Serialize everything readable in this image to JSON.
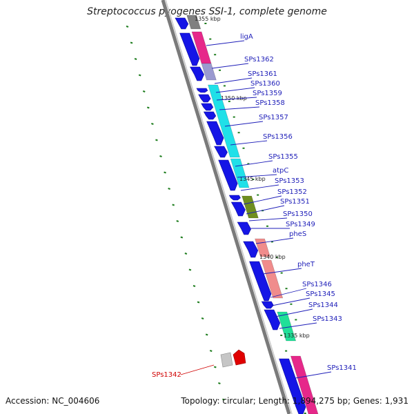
{
  "title": "Streptococcus pyogenes SSI-1, complete genome",
  "accession": "Accession: NC_004606",
  "summary": "Topology: circular; Length: 1,894,275 bp; Genes: 1,931",
  "colors": {
    "backbone": "#7a7a7a",
    "tick": "#1e7d1e",
    "forward": "#1515e6",
    "label_line": "#1d1db8",
    "highlight": "#d00000"
  },
  "scale_labels": [
    "1355 kbp",
    "1350 kbp",
    "1345 kbp",
    "1340 kbp",
    "1335 kbp"
  ],
  "genes": [
    {
      "label": "ligA",
      "color": "blue"
    },
    {
      "label": "SPs1362",
      "color": "blue"
    },
    {
      "label": "SPs1361",
      "color": "blue"
    },
    {
      "label": "SPs1360",
      "color": "blue"
    },
    {
      "label": "SPs1359",
      "color": "blue"
    },
    {
      "label": "SPs1358",
      "color": "blue"
    },
    {
      "label": "SPs1357",
      "color": "blue"
    },
    {
      "label": "SPs1356",
      "color": "blue"
    },
    {
      "label": "SPs1355",
      "color": "blue"
    },
    {
      "label": "atpC",
      "color": "blue"
    },
    {
      "label": "SPs1353",
      "color": "blue"
    },
    {
      "label": "SPs1352",
      "color": "blue"
    },
    {
      "label": "SPs1351",
      "color": "blue"
    },
    {
      "label": "SPs1350",
      "color": "blue"
    },
    {
      "label": "SPs1349",
      "color": "blue"
    },
    {
      "label": "pheS",
      "color": "blue"
    },
    {
      "label": "pheT",
      "color": "blue"
    },
    {
      "label": "SPs1346",
      "color": "blue"
    },
    {
      "label": "SPs1345",
      "color": "blue"
    },
    {
      "label": "SPs1344",
      "color": "blue"
    },
    {
      "label": "SPs1343",
      "color": "blue"
    },
    {
      "label": "SPs1342",
      "color": "red"
    },
    {
      "label": "SPs1341",
      "color": "blue"
    }
  ]
}
